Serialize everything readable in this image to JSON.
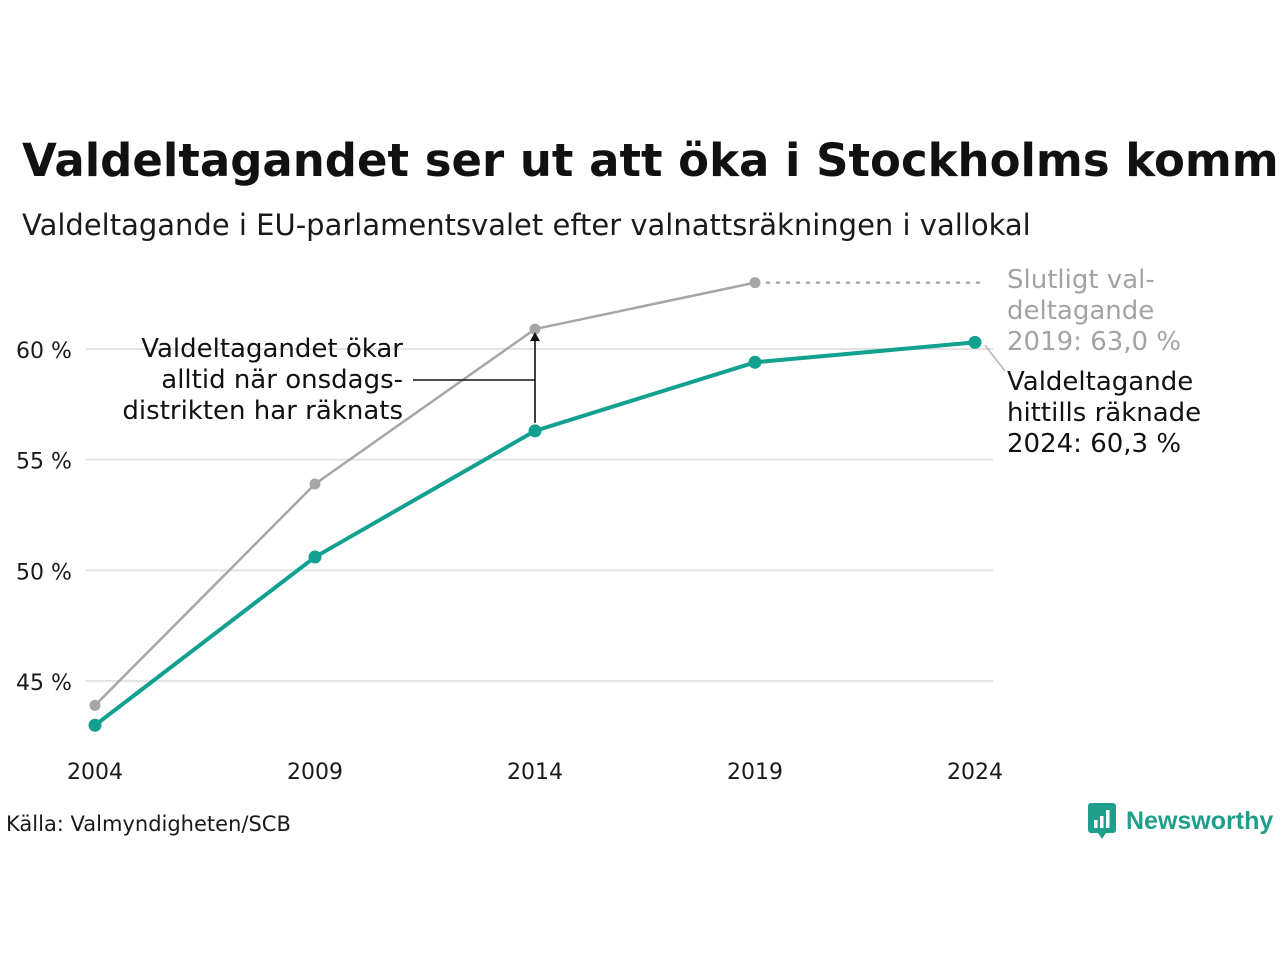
{
  "title": "Valdeltagandet ser ut att öka i Stockholms kommu",
  "subtitle": "Valdeltagande i EU-parlamentsvalet efter valnattsräkningen i vallokal",
  "chart_data": {
    "type": "line",
    "x": [
      "2004",
      "2009",
      "2014",
      "2019",
      "2024"
    ],
    "y_ticks": [
      45,
      50,
      55,
      60
    ],
    "y_tick_labels": [
      "45 %",
      "50 %",
      "55 %",
      "60 %"
    ],
    "ylim": [
      42,
      64
    ],
    "grid": true,
    "series": [
      {
        "key": "final",
        "values": [
          43.9,
          53.9,
          60.9,
          63.0,
          null
        ],
        "color": "#a6a6a6"
      },
      {
        "key": "election_night",
        "values": [
          43.0,
          50.6,
          56.3,
          59.4,
          60.3
        ],
        "color": "#12a090"
      }
    ],
    "annotations": {
      "left": "Valdeltagandet ökar\nalltid när onsdags-\ndistrikten har räknats",
      "final": "Slutligt val-\ndeltagande\n2019: 63,0 %",
      "current": "Valdeltagande\nhittills räknade\n2024: 60,3 %"
    }
  },
  "source": "Källa: Valmyndigheten/SCB",
  "logo": {
    "text": "Newsworthy",
    "icon": "bar-chart-speech-bubble-icon",
    "color": "#1f9e8c"
  }
}
